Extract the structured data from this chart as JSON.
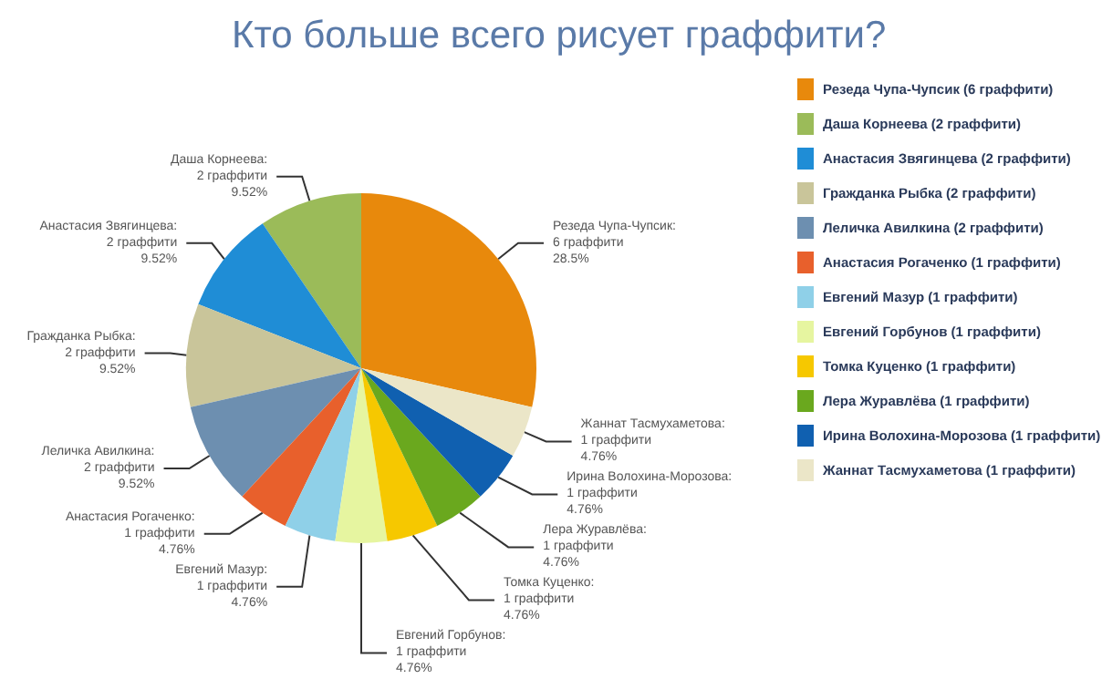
{
  "chart_data": {
    "type": "pie",
    "title": "Кто больше всего рисует граффити?",
    "categories": [
      "Резеда Чупа-Чупсик (6 граффити)",
      "Даша Корнеева (2 граффити)",
      "Анастасия Звягинцева (2 граффити)",
      "Гражданка Рыбка (2 граффити)",
      "Леличка Авилкина (2 граффити)",
      "Анастасия Рогаченко (1 граффити)",
      "Евгений Мазур (1 граффити)",
      "Евгений Горбунов (1 граффити)",
      "Томка Куценко (1 граффити)",
      "Лера Журавлёва (1 граффити)",
      "Ирина Волохина-Морозова (1 граффити)",
      "Жаннат Тасмухаметова (1 граффити)"
    ],
    "values": [
      6,
      2,
      2,
      2,
      2,
      1,
      1,
      1,
      1,
      1,
      1,
      1
    ],
    "value_labels": [
      "Резеда Чупа-Чупсик:\n6 граффити\n28.5%",
      "Даша Корнеева:\n2 граффити\n9.52%",
      "Анастасия Звягинцева:\n2 граффити\n9.52%",
      "Гражданка Рыбка:\n2 граффити\n9.52%",
      "Леличка Авилкина:\n2 граффити\n9.52%",
      "Анастасия Рогаченко:\n1 граффити\n4.76%",
      "Евгений Мазур:\n1 граффити\n4.76%",
      "Евгений Горбунов:\n1 граффити\n4.76%",
      "Томка Куценко:\n1 граффити\n4.76%",
      "Лера Журавлёва:\n1 граффити\n4.76%",
      "Ирина Волохина-Морозова:\n1 граффити\n4.76%",
      "Жаннат Тасмухаметова:\n1 граффити\n4.76%"
    ],
    "colors": [
      "#e8890c",
      "#9bbb59",
      "#1f8dd6",
      "#c9c59a",
      "#6d8fb0",
      "#e8602c",
      "#8fd0e8",
      "#e6f5a0",
      "#f6c800",
      "#6aa81e",
      "#1060b0",
      "#ebe6c8"
    ],
    "legend": "right"
  }
}
